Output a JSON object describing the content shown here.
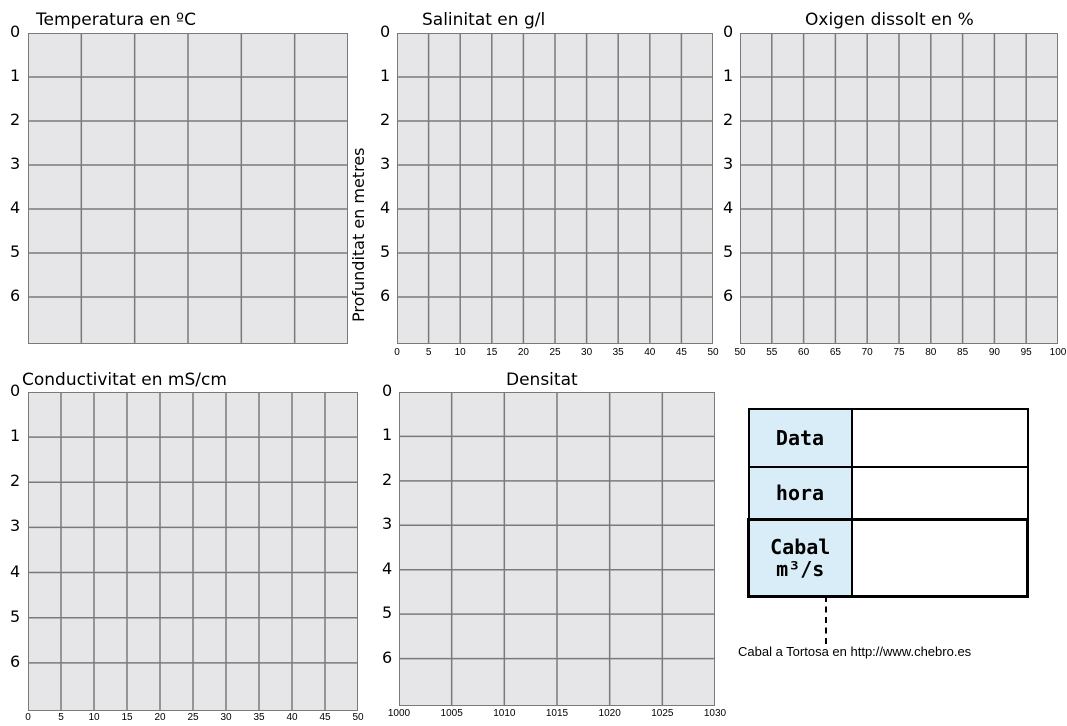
{
  "depth_axis_title": "Profunditat en metres",
  "depth_ticks": [
    "0",
    "1",
    "2",
    "3",
    "4",
    "5",
    "6"
  ],
  "charts": [
    {
      "id": "temperatura",
      "title": "Temperatura en ºC",
      "cols": 6,
      "x_ticks": []
    },
    {
      "id": "salinitat",
      "title": "Salinitat en g/l",
      "cols": 10,
      "x_ticks": [
        "0",
        "5",
        "10",
        "15",
        "20",
        "25",
        "30",
        "35",
        "40",
        "45",
        "50"
      ]
    },
    {
      "id": "oxigen",
      "title": "Oxigen dissolt en %",
      "cols": 10,
      "x_ticks": [
        "50",
        "55",
        "60",
        "65",
        "70",
        "75",
        "80",
        "85",
        "90",
        "95",
        "100"
      ]
    },
    {
      "id": "conductivitat",
      "title": "Conductivitat en mS/cm",
      "cols": 10,
      "x_ticks": [
        "0",
        "5",
        "10",
        "15",
        "20",
        "25",
        "30",
        "35",
        "40",
        "45",
        "50"
      ]
    },
    {
      "id": "densitat",
      "title": "Densitat",
      "cols": 6,
      "x_ticks": [
        "1000",
        "1005",
        "1010",
        "1015",
        "1020",
        "1025",
        "1030"
      ]
    }
  ],
  "info_table": {
    "data_label": "Data",
    "hora_label": "hora",
    "cabal_label_1": "Cabal",
    "cabal_label_2": "m³/s"
  },
  "footnote": "Cabal a Tortosa en http://www.chebro.es"
}
